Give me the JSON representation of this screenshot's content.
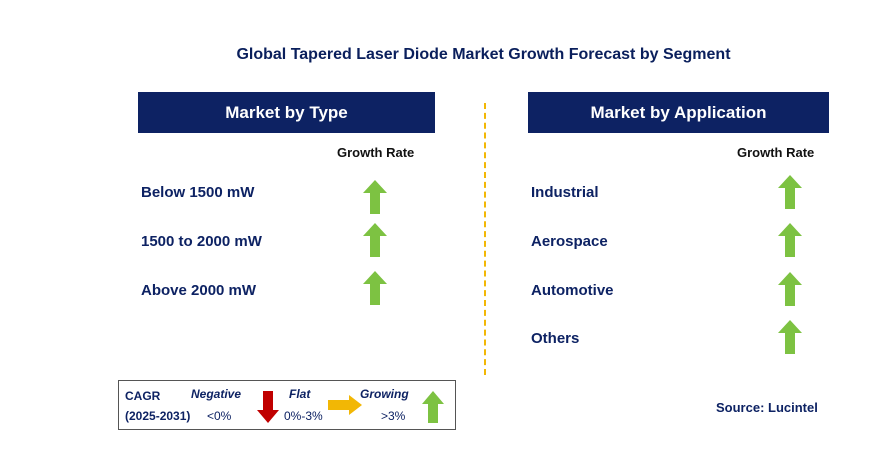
{
  "title": "Global Tapered Laser Diode Market Growth Forecast by Segment",
  "type_panel": {
    "header": "Market by Type",
    "column_label": "Growth Rate",
    "items": [
      {
        "label": "Below 1500 mW",
        "trend": "growing"
      },
      {
        "label": "1500 to 2000 mW",
        "trend": "growing"
      },
      {
        "label": "Above 2000 mW",
        "trend": "growing"
      }
    ]
  },
  "application_panel": {
    "header": "Market by Application",
    "column_label": "Growth Rate",
    "items": [
      {
        "label": "Industrial",
        "trend": "growing"
      },
      {
        "label": "Aerospace",
        "trend": "growing"
      },
      {
        "label": "Automotive",
        "trend": "growing"
      },
      {
        "label": "Others",
        "trend": "growing"
      }
    ]
  },
  "legend": {
    "cagr_label": "CAGR",
    "period": "(2025-2031)",
    "negative": {
      "label": "Negative",
      "range": "<0%"
    },
    "flat": {
      "label": "Flat",
      "range": "0%-3%"
    },
    "growing": {
      "label": "Growing",
      "range": ">3%"
    }
  },
  "source": "Source: Lucintel",
  "colors": {
    "navy": "#0d2263",
    "up_arrow": "#7dc242",
    "down_arrow": "#c00000",
    "flat_arrow": "#f2b705",
    "divider": "#f2b705"
  }
}
